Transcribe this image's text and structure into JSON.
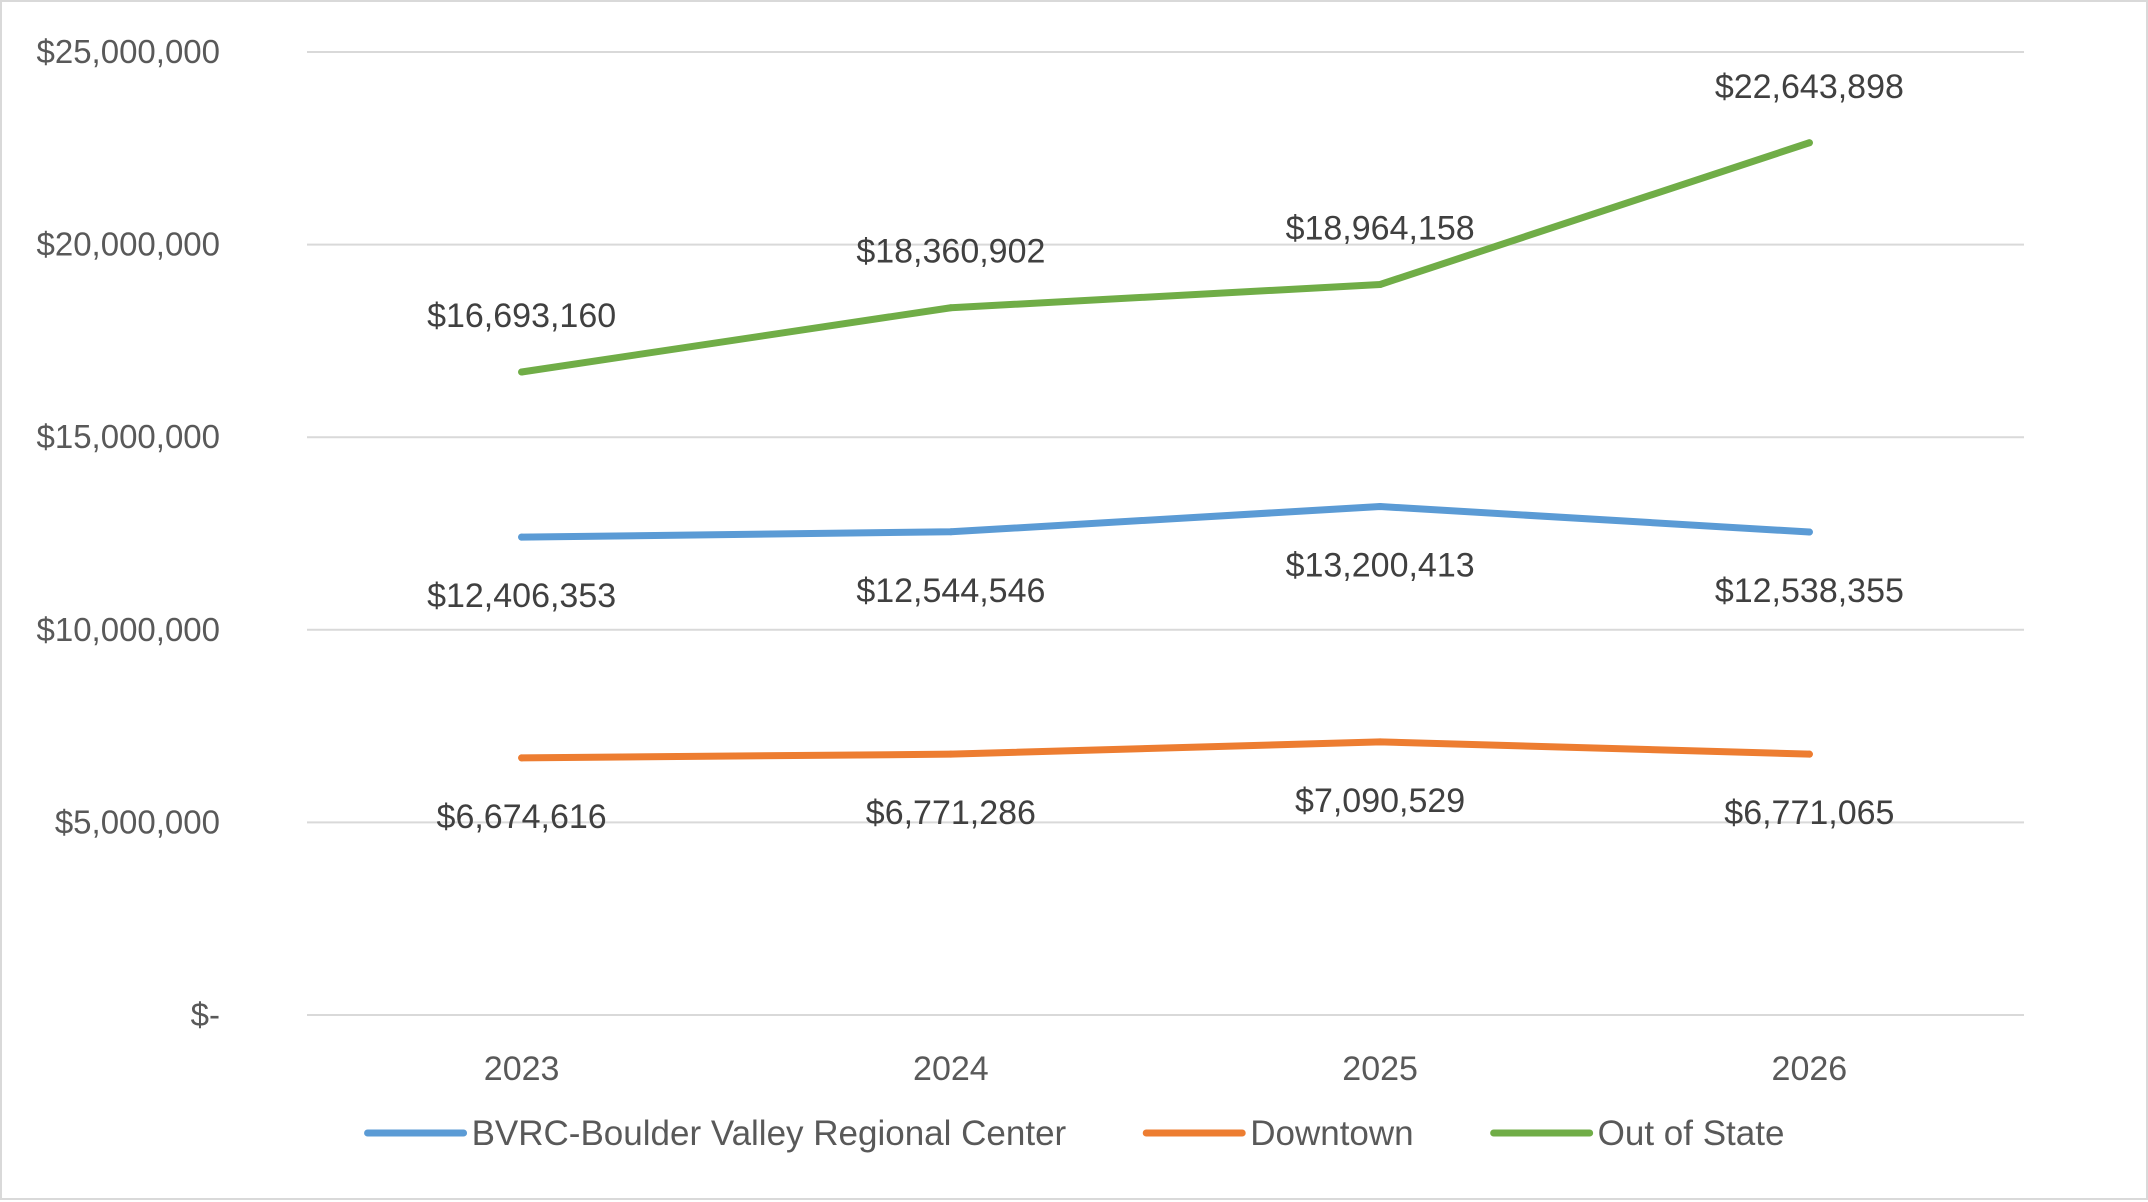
{
  "chart_data": {
    "type": "line",
    "categories": [
      "2023",
      "2024",
      "2025",
      "2026"
    ],
    "series": [
      {
        "name": "BVRC-Boulder Valley Regional Center",
        "color": "#5b9bd5",
        "values": [
          12406353,
          12544546,
          13200413,
          12538355
        ],
        "labels": [
          "$12,406,353",
          "$12,544,546",
          "$13,200,413",
          "$12,538,355"
        ]
      },
      {
        "name": "Downtown",
        "color": "#ed7d31",
        "values": [
          6674616,
          6771286,
          7090529,
          6771065
        ],
        "labels": [
          "$6,674,616",
          "$6,771,286",
          "$7,090,529",
          "$6,771,065"
        ]
      },
      {
        "name": "Out of State",
        "color": "#70ad47",
        "values": [
          16693160,
          18360902,
          18964158,
          22643898
        ],
        "labels": [
          "$16,693,160",
          "$18,360,902",
          "$18,964,158",
          "$22,643,898"
        ]
      }
    ],
    "yticks": [
      0,
      5000000,
      10000000,
      15000000,
      20000000,
      25000000
    ],
    "ytick_labels": [
      "$-",
      "$5,000,000",
      "$10,000,000",
      "$15,000,000",
      "$20,000,000",
      "$25,000,000"
    ],
    "ylim": [
      0,
      25000000
    ],
    "grid": true,
    "gridline_color": "#d9d9d9",
    "legend_position": "bottom"
  }
}
